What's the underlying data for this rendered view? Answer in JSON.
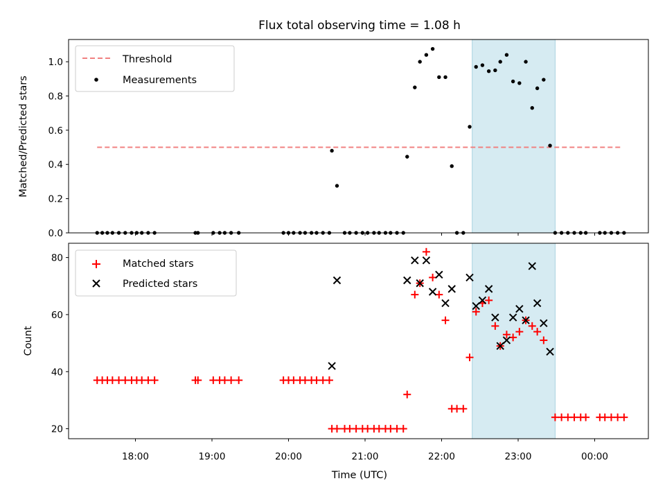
{
  "chart_data": [
    {
      "type": "scatter",
      "title": "Flux total observing time = 1.08 h",
      "xlabel": "",
      "ylabel": "Matched/Predicted stars",
      "ylim": [
        0,
        1.13
      ],
      "yticks": [
        "0.0",
        "0.2",
        "0.4",
        "0.6",
        "0.8",
        "1.0"
      ],
      "legend_position": "top-left",
      "shaded_time_range": [
        "22:24",
        "23:29"
      ],
      "threshold": {
        "name": "Threshold",
        "value": 0.5,
        "from": "17:30",
        "to": "00:20",
        "color": "#f08080"
      },
      "series": [
        {
          "name": "Measurements",
          "color": "#000000",
          "points": [
            [
              "17:30",
              0
            ],
            [
              "17:34",
              0
            ],
            [
              "17:38",
              0
            ],
            [
              "17:42",
              0
            ],
            [
              "17:47",
              0
            ],
            [
              "17:52",
              0
            ],
            [
              "17:57",
              0
            ],
            [
              "18:01",
              0
            ],
            [
              "18:05",
              0
            ],
            [
              "18:10",
              0
            ],
            [
              "18:15",
              0
            ],
            [
              "18:47",
              0
            ],
            [
              "18:49",
              0
            ],
            [
              "19:01",
              0
            ],
            [
              "19:06",
              0
            ],
            [
              "19:10",
              0
            ],
            [
              "19:15",
              0
            ],
            [
              "19:21",
              0
            ],
            [
              "19:56",
              0
            ],
            [
              "20:00",
              0
            ],
            [
              "20:04",
              0
            ],
            [
              "20:09",
              0
            ],
            [
              "20:13",
              0
            ],
            [
              "20:18",
              0
            ],
            [
              "20:22",
              0
            ],
            [
              "20:27",
              0
            ],
            [
              "20:32",
              0
            ],
            [
              "20:34",
              0.48
            ],
            [
              "20:38",
              0.275
            ],
            [
              "20:44",
              0
            ],
            [
              "20:48",
              0
            ],
            [
              "20:53",
              0
            ],
            [
              "20:58",
              0
            ],
            [
              "21:02",
              0
            ],
            [
              "21:07",
              0
            ],
            [
              "21:11",
              0
            ],
            [
              "21:16",
              0
            ],
            [
              "21:20",
              0
            ],
            [
              "21:25",
              0
            ],
            [
              "21:30",
              0
            ],
            [
              "21:33",
              0.445
            ],
            [
              "21:39",
              0.85
            ],
            [
              "21:43",
              1.0
            ],
            [
              "21:48",
              1.04
            ],
            [
              "21:53",
              1.075
            ],
            [
              "21:58",
              0.91
            ],
            [
              "22:03",
              0.91
            ],
            [
              "22:08",
              0.39
            ],
            [
              "22:12",
              0
            ],
            [
              "22:17",
              0
            ],
            [
              "22:22",
              0.62
            ],
            [
              "22:27",
              0.97
            ],
            [
              "22:32",
              0.98
            ],
            [
              "22:37",
              0.945
            ],
            [
              "22:42",
              0.95
            ],
            [
              "22:46",
              1.0
            ],
            [
              "22:51",
              1.04
            ],
            [
              "22:56",
              0.885
            ],
            [
              "23:01",
              0.875
            ],
            [
              "23:06",
              1.0
            ],
            [
              "23:11",
              0.73
            ],
            [
              "23:15",
              0.845
            ],
            [
              "23:20",
              0.895
            ],
            [
              "23:25",
              0.51
            ],
            [
              "23:29",
              0
            ],
            [
              "23:34",
              0
            ],
            [
              "23:39",
              0
            ],
            [
              "23:44",
              0
            ],
            [
              "23:49",
              0
            ],
            [
              "23:53",
              0
            ],
            [
              "00:04",
              0
            ],
            [
              "00:08",
              0
            ],
            [
              "00:13",
              0
            ],
            [
              "00:18",
              0
            ],
            [
              "00:23",
              0
            ]
          ]
        }
      ]
    },
    {
      "type": "scatter",
      "title": "",
      "xlabel": "Time (UTC)",
      "ylabel": "Count",
      "ylim": [
        16.5,
        85
      ],
      "yticks": [
        "20",
        "40",
        "60",
        "80"
      ],
      "xticks": [
        "18:00",
        "19:00",
        "20:00",
        "21:00",
        "22:00",
        "23:00",
        "00:00"
      ],
      "legend_position": "top-left",
      "shaded_time_range": [
        "22:24",
        "23:29"
      ],
      "series": [
        {
          "name": "Matched stars",
          "marker": "plus",
          "color": "#ff0000",
          "points": [
            [
              "17:30",
              37
            ],
            [
              "17:34",
              37
            ],
            [
              "17:38",
              37
            ],
            [
              "17:42",
              37
            ],
            [
              "17:47",
              37
            ],
            [
              "17:52",
              37
            ],
            [
              "17:57",
              37
            ],
            [
              "18:01",
              37
            ],
            [
              "18:05",
              37
            ],
            [
              "18:10",
              37
            ],
            [
              "18:15",
              37
            ],
            [
              "18:47",
              37
            ],
            [
              "18:49",
              37
            ],
            [
              "19:01",
              37
            ],
            [
              "19:06",
              37
            ],
            [
              "19:10",
              37
            ],
            [
              "19:15",
              37
            ],
            [
              "19:21",
              37
            ],
            [
              "19:56",
              37
            ],
            [
              "20:00",
              37
            ],
            [
              "20:04",
              37
            ],
            [
              "20:09",
              37
            ],
            [
              "20:13",
              37
            ],
            [
              "20:18",
              37
            ],
            [
              "20:22",
              37
            ],
            [
              "20:27",
              37
            ],
            [
              "20:32",
              37
            ],
            [
              "20:34",
              20
            ],
            [
              "20:38",
              20
            ],
            [
              "20:44",
              20
            ],
            [
              "20:48",
              20
            ],
            [
              "20:53",
              20
            ],
            [
              "20:58",
              20
            ],
            [
              "21:02",
              20
            ],
            [
              "21:07",
              20
            ],
            [
              "21:11",
              20
            ],
            [
              "21:16",
              20
            ],
            [
              "21:20",
              20
            ],
            [
              "21:25",
              20
            ],
            [
              "21:30",
              20
            ],
            [
              "21:33",
              32
            ],
            [
              "21:39",
              67
            ],
            [
              "21:43",
              71
            ],
            [
              "21:48",
              82
            ],
            [
              "21:53",
              73
            ],
            [
              "21:58",
              67
            ],
            [
              "22:03",
              58
            ],
            [
              "22:08",
              27
            ],
            [
              "22:12",
              27
            ],
            [
              "22:17",
              27
            ],
            [
              "22:22",
              45
            ],
            [
              "22:27",
              61
            ],
            [
              "22:32",
              64
            ],
            [
              "22:37",
              65
            ],
            [
              "22:42",
              56
            ],
            [
              "22:46",
              49
            ],
            [
              "22:51",
              53
            ],
            [
              "22:56",
              52
            ],
            [
              "23:01",
              54
            ],
            [
              "23:06",
              58
            ],
            [
              "23:11",
              56
            ],
            [
              "23:15",
              54
            ],
            [
              "23:20",
              51
            ],
            [
              "23:29",
              24
            ],
            [
              "23:34",
              24
            ],
            [
              "23:39",
              24
            ],
            [
              "23:44",
              24
            ],
            [
              "23:49",
              24
            ],
            [
              "23:53",
              24
            ],
            [
              "00:04",
              24
            ],
            [
              "00:08",
              24
            ],
            [
              "00:13",
              24
            ],
            [
              "00:18",
              24
            ],
            [
              "00:23",
              24
            ]
          ]
        },
        {
          "name": "Predicted stars",
          "marker": "x",
          "color": "#000000",
          "points": [
            [
              "20:34",
              42
            ],
            [
              "20:38",
              72
            ],
            [
              "21:33",
              72
            ],
            [
              "21:39",
              79
            ],
            [
              "21:43",
              71
            ],
            [
              "21:48",
              79
            ],
            [
              "21:53",
              68
            ],
            [
              "21:58",
              74
            ],
            [
              "22:03",
              64
            ],
            [
              "22:08",
              69
            ],
            [
              "22:22",
              73
            ],
            [
              "22:27",
              63
            ],
            [
              "22:32",
              65
            ],
            [
              "22:37",
              69
            ],
            [
              "22:42",
              59
            ],
            [
              "22:46",
              49
            ],
            [
              "22:51",
              51
            ],
            [
              "22:56",
              59
            ],
            [
              "23:01",
              62
            ],
            [
              "23:06",
              58
            ],
            [
              "23:11",
              77
            ],
            [
              "23:15",
              64
            ],
            [
              "23:20",
              57
            ],
            [
              "23:25",
              47
            ]
          ]
        }
      ]
    }
  ]
}
